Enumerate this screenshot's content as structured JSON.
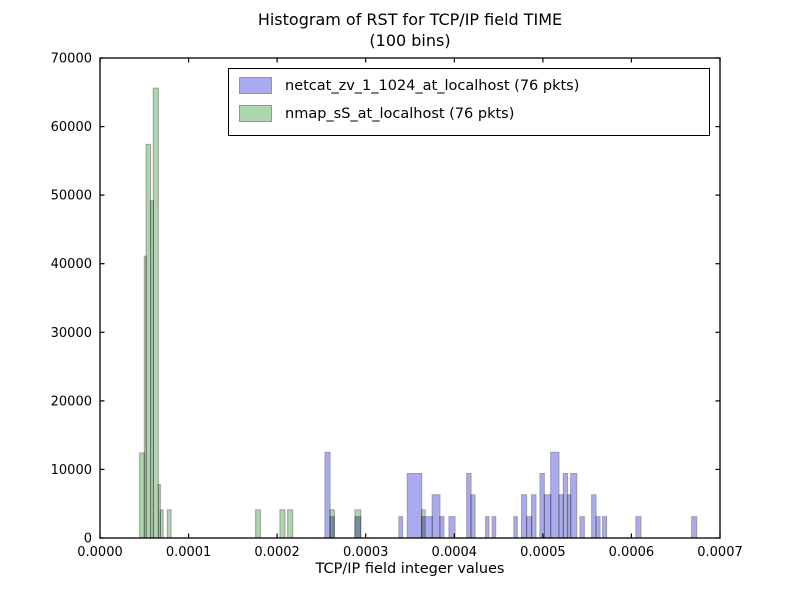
{
  "figure": {
    "title_line1": "Histogram of RST for TCP/IP field TIME",
    "title_line2": "(100 bins)",
    "xlabel": "TCP/IP field integer values"
  },
  "legend": {
    "position": "upper center",
    "entries": [
      {
        "label": "netcat_zv_1_1024_at_localhost (76 pkts)",
        "color": "#aaaaf2",
        "edge": "#969696"
      },
      {
        "label": "nmap_sS_at_localhost (76 pkts)",
        "color": "#add6ad",
        "edge": "#969696"
      }
    ]
  },
  "chart_data": {
    "type": "histogram",
    "title": "Histogram of RST for TCP/IP field TIME (100 bins)",
    "subtitle": "(100 bins)",
    "xlabel": "TCP/IP field integer values",
    "ylabel": "",
    "bins": 100,
    "grid": false,
    "legend_position": "upper center",
    "xlim": [
      0,
      0.0007
    ],
    "ylim": [
      0,
      70000
    ],
    "xticks": [
      {
        "v": 0.0,
        "label": "0.0000"
      },
      {
        "v": 0.0001,
        "label": "0.0001"
      },
      {
        "v": 0.0002,
        "label": "0.0002"
      },
      {
        "v": 0.0003,
        "label": "0.0003"
      },
      {
        "v": 0.0004,
        "label": "0.0004"
      },
      {
        "v": 0.0005,
        "label": "0.0005"
      },
      {
        "v": 0.0006,
        "label": "0.0006"
      },
      {
        "v": 0.0007,
        "label": "0.0007"
      }
    ],
    "yticks": [
      {
        "v": 0,
        "label": "0"
      },
      {
        "v": 10000,
        "label": "10000"
      },
      {
        "v": 20000,
        "label": "20000"
      },
      {
        "v": 30000,
        "label": "30000"
      },
      {
        "v": 40000,
        "label": "40000"
      },
      {
        "v": 50000,
        "label": "50000"
      },
      {
        "v": 60000,
        "label": "60000"
      },
      {
        "v": 70000,
        "label": "70000"
      }
    ],
    "series": [
      {
        "name": "netcat_zv_1_1024_at_localhost (76 pkts)",
        "packets": 76,
        "fill": "#aaaaf2",
        "edge": "#9a9a9a",
        "bars": [
          [
            0.000254,
            0.0002597,
            12500
          ],
          [
            0.0002597,
            0.0002645,
            3100
          ],
          [
            0.0002879,
            0.0002943,
            3100
          ],
          [
            0.0003375,
            0.0003417,
            3100
          ],
          [
            0.0003469,
            0.0003632,
            9400
          ],
          [
            0.0003632,
            0.0003751,
            3100
          ],
          [
            0.0003751,
            0.0003838,
            6300
          ],
          [
            0.0003838,
            0.0003883,
            3100
          ],
          [
            0.000394,
            0.0004008,
            3100
          ],
          [
            0.000414,
            0.0004188,
            9400
          ],
          [
            0.0004188,
            0.0004234,
            6300
          ],
          [
            0.0004354,
            0.0004391,
            3100
          ],
          [
            0.0004428,
            0.0004467,
            3100
          ],
          [
            0.0004673,
            0.0004711,
            3100
          ],
          [
            0.000476,
            0.0004817,
            6300
          ],
          [
            0.0004817,
            0.0004873,
            3100
          ],
          [
            0.0004873,
            0.0004921,
            6300
          ],
          [
            0.0004968,
            0.0005016,
            9400
          ],
          [
            0.0005016,
            0.0005089,
            6300
          ],
          [
            0.0005089,
            0.0005182,
            12500
          ],
          [
            0.0005182,
            0.0005231,
            6300
          ],
          [
            0.0005231,
            0.000528,
            9400
          ],
          [
            0.000528,
            0.0005314,
            6300
          ],
          [
            0.0005314,
            0.0005382,
            9400
          ],
          [
            0.0005419,
            0.0005468,
            3100
          ],
          [
            0.0005551,
            0.00056,
            6300
          ],
          [
            0.00056,
            0.0005645,
            3100
          ],
          [
            0.0005675,
            0.000572,
            3100
          ],
          [
            0.0006051,
            0.0006108,
            3100
          ],
          [
            0.000668,
            0.0006737,
            3100
          ]
        ]
      },
      {
        "name": "nmap_sS_at_localhost (76 pkts)",
        "packets": 76,
        "fill": "#add6ad",
        "edge": "#9a9a9a",
        "bars": [
          [
            4.48e-05,
            5e-05,
            12400
          ],
          [
            5e-05,
            5.22e-05,
            41100
          ],
          [
            5.22e-05,
            5.72e-05,
            57400
          ],
          [
            5.72e-05,
            6.02e-05,
            49200
          ],
          [
            6.02e-05,
            6.58e-05,
            65600
          ],
          [
            6.58e-05,
            6.81e-05,
            7800
          ],
          [
            6.81e-05,
            7.11e-05,
            4100
          ],
          [
            7.6e-05,
            8.02e-05,
            4100
          ],
          [
            0.0001758,
            0.000181,
            4100
          ],
          [
            0.0002032,
            0.0002089,
            4100
          ],
          [
            0.0002119,
            0.0002175,
            4100
          ],
          [
            0.0002597,
            0.0002645,
            4100
          ],
          [
            0.0002879,
            0.0002943,
            4100
          ],
          [
            0.0003632,
            0.000367,
            4100
          ]
        ]
      }
    ]
  }
}
